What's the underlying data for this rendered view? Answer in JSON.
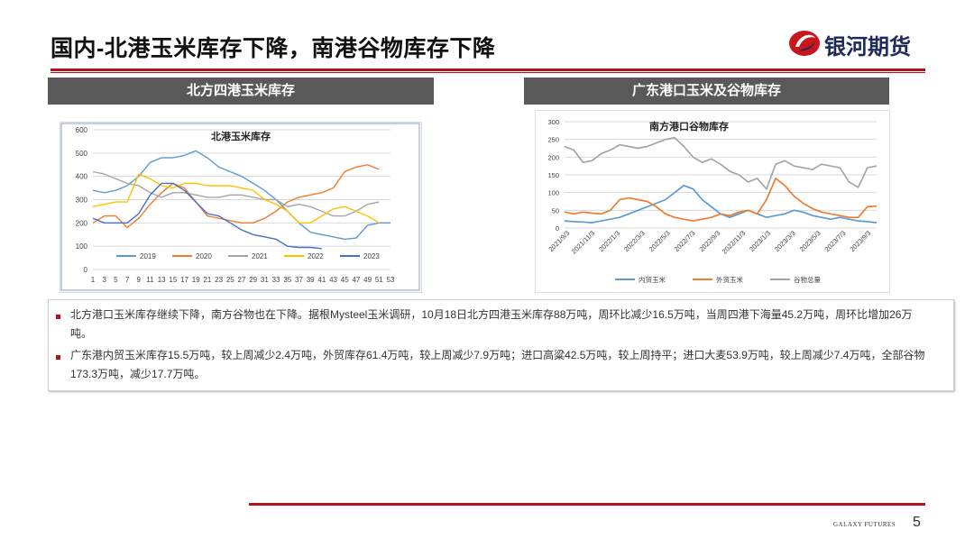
{
  "header": {
    "title": "国内-北港玉米库存下降，南港谷物库存下降",
    "logo_text": "银河期货"
  },
  "panels": {
    "left_title": "北方四港玉米库存",
    "right_title": "广东港口玉米及谷物库存"
  },
  "notes": [
    "北方港口玉米库存继续下降，南方谷物也在下降。据根Mysteel玉米调研，10月18日北方四港玉米库存88万吨，周环比减少16.5万吨，当周四港下海量45.2万吨，周环比增加26万吨。",
    "广东港内贸玉米库存15.5万吨，较上周减少2.4万吨，外贸库存61.4万吨，较上周减少7.9万吨；进口高粱42.5万吨，较上周持平；进口大麦53.9万吨，较上周减少7.4万吨，全部谷物173.3万吨，减少17.7万吨。"
  ],
  "footer": {
    "brand": "GALAXY FUTURES",
    "page": "5"
  },
  "chart_data": [
    {
      "type": "line",
      "title": "北港玉米库存",
      "xlabel": "",
      "ylabel": "",
      "ylim": [
        0,
        600
      ],
      "yticks": [
        "0",
        "100",
        "200",
        "300",
        "400",
        "500",
        "600"
      ],
      "x": [
        "1",
        "3",
        "5",
        "7",
        "9",
        "11",
        "13",
        "15",
        "17",
        "19",
        "21",
        "23",
        "25",
        "27",
        "29",
        "31",
        "33",
        "35",
        "37",
        "39",
        "41",
        "43",
        "45",
        "47",
        "49",
        "51",
        "53"
      ],
      "grid": true,
      "legend_position": "bottom",
      "series": [
        {
          "name": "2019",
          "color": "#5b9bd5",
          "values": [
            340,
            330,
            340,
            360,
            400,
            460,
            480,
            480,
            490,
            510,
            480,
            440,
            420,
            400,
            370,
            340,
            300,
            250,
            200,
            160,
            150,
            140,
            130,
            135,
            190,
            200,
            200
          ]
        },
        {
          "name": "2020",
          "color": "#ed7d31",
          "values": [
            200,
            230,
            230,
            180,
            220,
            280,
            330,
            370,
            350,
            290,
            230,
            220,
            210,
            200,
            200,
            220,
            250,
            290,
            310,
            320,
            330,
            350,
            420,
            440,
            450,
            430,
            null
          ]
        },
        {
          "name": "2021",
          "color": "#a5a5a5",
          "values": [
            420,
            410,
            390,
            370,
            360,
            330,
            310,
            330,
            330,
            320,
            310,
            310,
            320,
            320,
            310,
            300,
            300,
            270,
            280,
            270,
            250,
            230,
            230,
            250,
            280,
            290,
            null
          ]
        },
        {
          "name": "2022",
          "color": "#ffc000",
          "values": [
            270,
            280,
            290,
            290,
            410,
            390,
            360,
            350,
            370,
            370,
            360,
            360,
            360,
            350,
            340,
            300,
            280,
            250,
            200,
            200,
            230,
            260,
            270,
            250,
            230,
            200,
            null
          ]
        },
        {
          "name": "2023",
          "color": "#4472c4",
          "values": [
            220,
            200,
            200,
            200,
            240,
            320,
            370,
            370,
            340,
            290,
            240,
            230,
            200,
            170,
            150,
            140,
            130,
            100,
            95,
            95,
            90,
            null,
            null,
            null,
            null,
            null,
            null
          ]
        }
      ]
    },
    {
      "type": "line",
      "title": "南方港口谷物库存",
      "xlabel": "",
      "ylabel": "",
      "ylim": [
        0,
        300
      ],
      "yticks": [
        "0",
        "50",
        "100",
        "150",
        "200",
        "250",
        "300"
      ],
      "x_tick_labels": [
        "2021/9/3",
        "2021/11/3",
        "2022/1/3",
        "2022/3/3",
        "2022/5/3",
        "2022/7/3",
        "2022/9/3",
        "2022/11/3",
        "2023/1/3",
        "2023/3/3",
        "2023/5/3",
        "2023/7/3",
        "2023/9/3"
      ],
      "grid": true,
      "legend_position": "bottom",
      "series": [
        {
          "name": "内贸玉米",
          "color": "#5b9bd5",
          "values": [
            20,
            18,
            17,
            15,
            20,
            25,
            30,
            40,
            50,
            60,
            70,
            80,
            100,
            120,
            110,
            80,
            60,
            40,
            30,
            40,
            50,
            40,
            30,
            35,
            40,
            50,
            45,
            35,
            30,
            25,
            30,
            25,
            20,
            18,
            15
          ]
        },
        {
          "name": "外贸玉米",
          "color": "#ed7d31",
          "values": [
            45,
            40,
            45,
            42,
            40,
            50,
            80,
            85,
            80,
            75,
            60,
            40,
            30,
            25,
            20,
            25,
            30,
            40,
            35,
            45,
            50,
            40,
            80,
            140,
            120,
            90,
            70,
            55,
            45,
            40,
            35,
            30,
            30,
            60,
            62
          ]
        },
        {
          "name": "谷物总量",
          "color": "#a5a5a5",
          "values": [
            230,
            220,
            185,
            190,
            210,
            220,
            235,
            230,
            225,
            230,
            240,
            250,
            255,
            230,
            200,
            185,
            195,
            180,
            160,
            150,
            130,
            140,
            110,
            180,
            190,
            175,
            170,
            165,
            180,
            175,
            170,
            130,
            115,
            170,
            175
          ]
        }
      ]
    }
  ]
}
